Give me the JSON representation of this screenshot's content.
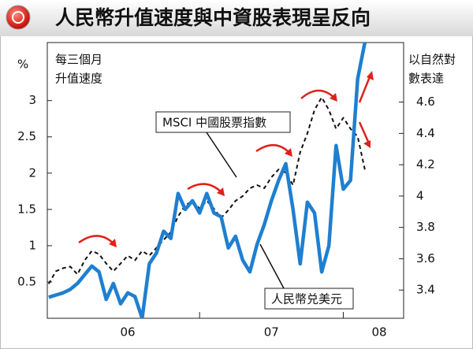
{
  "chart_data": {
    "type": "line",
    "title": "人民幣升值速度與中資股表現呈反向",
    "y_label": "%",
    "y_note": [
      "每三個月",
      "升值速度"
    ],
    "y2_note": [
      "以自然對",
      "數表達"
    ],
    "x": [
      2005.95,
      2006.0,
      2006.05,
      2006.1,
      2006.15,
      2006.2,
      2006.25,
      2006.3,
      2006.35,
      2006.4,
      2006.45,
      2006.5,
      2006.55,
      2006.6,
      2006.65,
      2006.7,
      2006.75,
      2006.8,
      2006.85,
      2006.9,
      2006.95,
      2007.0,
      2007.05,
      2007.1,
      2007.15,
      2007.2,
      2007.25,
      2007.3,
      2007.35,
      2007.4,
      2007.45,
      2007.5,
      2007.55,
      2007.6,
      2007.65,
      2007.7,
      2007.75,
      2007.8,
      2007.85,
      2007.9,
      2007.95,
      2008.0,
      2008.05,
      2008.1,
      2008.15
    ],
    "series": [
      {
        "name": "人民幣兑美元",
        "color": "#1f7fd0",
        "axis": "y",
        "values": [
          0.29,
          0.32,
          0.35,
          0.4,
          0.48,
          0.6,
          0.72,
          0.64,
          0.26,
          0.48,
          0.2,
          0.35,
          0.3,
          0.0,
          0.75,
          0.9,
          1.2,
          1.1,
          1.72,
          1.5,
          1.62,
          1.45,
          1.72,
          1.45,
          1.4,
          0.97,
          1.13,
          0.8,
          0.64,
          1.02,
          1.29,
          1.62,
          1.9,
          2.13,
          1.5,
          0.75,
          1.6,
          1.45,
          0.64,
          1.0,
          2.38,
          1.78,
          1.9,
          3.3,
          3.8
        ]
      },
      {
        "name": "MSCI 中國股票指數",
        "color": "#111111",
        "axis": "y2",
        "values": [
          3.44,
          3.52,
          3.54,
          3.55,
          3.5,
          3.59,
          3.65,
          3.63,
          3.57,
          3.52,
          3.57,
          3.62,
          3.59,
          3.65,
          3.62,
          3.67,
          3.72,
          3.77,
          3.87,
          3.94,
          3.97,
          3.92,
          3.97,
          3.92,
          3.86,
          3.91,
          3.97,
          4.0,
          4.05,
          4.07,
          4.05,
          4.12,
          4.17,
          4.15,
          4.07,
          4.28,
          4.4,
          4.55,
          4.63,
          4.55,
          4.43,
          4.5,
          4.43,
          4.38,
          4.17
        ]
      }
    ],
    "xlim": [
      2005.94,
      2008.42
    ],
    "xticks": [
      {
        "value": 2006.5,
        "label": "06"
      },
      {
        "value": 2007.5,
        "label": "07"
      },
      {
        "value": 2008.25,
        "label": "08"
      }
    ],
    "xtick_marks": [
      2007,
      2008
    ],
    "ylim": [
      0,
      3.8
    ],
    "yticks": [
      0.5,
      1.0,
      1.5,
      2.0,
      2.5,
      3.0
    ],
    "y2lim": [
      3.22,
      4.98
    ],
    "y2ticks": [
      3.4,
      3.6,
      3.8,
      4.0,
      4.2,
      4.4,
      4.6
    ]
  }
}
